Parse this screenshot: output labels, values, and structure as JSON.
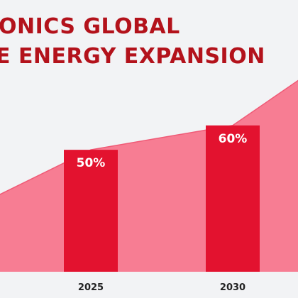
{
  "chart_data": {
    "type": "area",
    "title_lines": [
      "ONICS GLOBAL",
      "E ENERGY EXPANSION"
    ],
    "colors": {
      "title": "#b3121b",
      "area": "#f77d93",
      "bar": "#e3122f",
      "background": "#f2f3f5",
      "bar_label": "#ffffff",
      "tick_label": "#222222"
    },
    "area_points": [
      {
        "x": 2021.5,
        "y": 30
      },
      {
        "x": 2025,
        "y": 50
      },
      {
        "x": 2030,
        "y": 60
      },
      {
        "x": 2032.5,
        "y": 80
      }
    ],
    "bars": [
      {
        "x": 2025,
        "value": 50,
        "label": "50%"
      },
      {
        "x": 2030,
        "value": 60,
        "label": "60%"
      }
    ],
    "x_ticks": [
      {
        "value": 2025,
        "label": "2025"
      },
      {
        "value": 2030,
        "label": "2030"
      }
    ],
    "xlim": [
      2021.8,
      2032.3
    ],
    "ylim": [
      0,
      80
    ],
    "grid": false,
    "legend": "none"
  }
}
